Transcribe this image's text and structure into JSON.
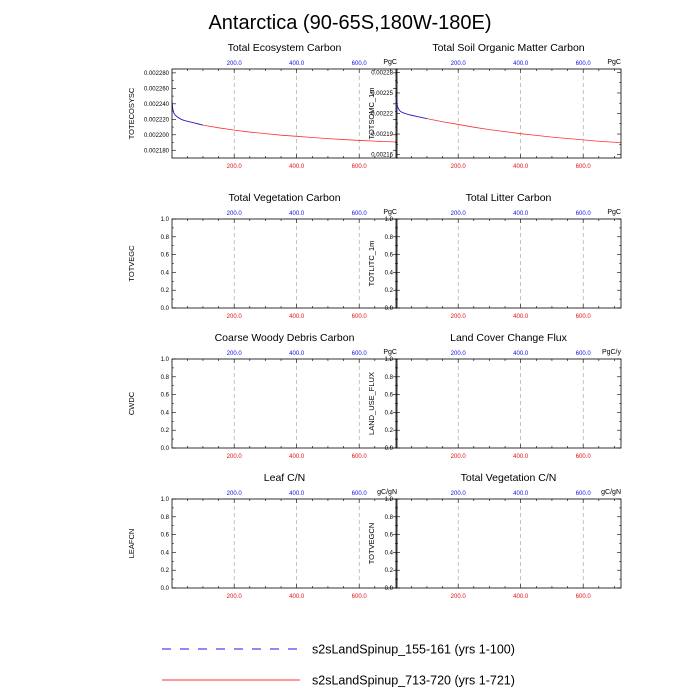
{
  "figure": {
    "title": "Antarctica (90-65S,180W-180E)"
  },
  "colors": {
    "series_a": "#1a1ae6",
    "series_b": "#ff3030",
    "top_ticks": "#1010e0",
    "bottom_ticks": "#e01010",
    "grid": "#999999"
  },
  "legend": {
    "items": [
      {
        "label": "s2sLandSpinup_155-161 (yrs 1-100)",
        "style": "dashed",
        "color": "#1a1ae6"
      },
      {
        "label": "s2sLandSpinup_713-720 (yrs 1-721)",
        "style": "solid",
        "color": "#ff3030"
      }
    ]
  },
  "chart_data": [
    {
      "type": "line",
      "title": "Total Ecosystem Carbon",
      "ylabel": "TOTECOSYSC",
      "units": "PgC",
      "xlim": [
        1,
        721
      ],
      "ylim": [
        0.00217,
        0.002285
      ],
      "yticks": [
        0.00218,
        0.0022,
        0.00222,
        0.00224,
        0.00226,
        0.00228
      ],
      "ytick_labels": [
        "0.002180",
        "0.002200",
        "0.002220",
        "0.002240",
        "0.002260",
        "0.002280"
      ],
      "xticks_bottom": [
        "200.0",
        "400.0",
        "600.0"
      ],
      "xticks_top": [
        "200.0",
        "400.0",
        "600.0"
      ],
      "xtick_values": [
        200,
        400,
        600
      ],
      "series": [
        {
          "x": [
            1,
            3,
            6,
            10,
            15,
            22,
            30,
            40,
            55,
            70,
            85,
            100
          ],
          "y": [
            0.002243,
            0.002234,
            0.002229,
            0.002226,
            0.002224,
            0.002222,
            0.00222,
            0.0022185,
            0.002217,
            0.0022155,
            0.002214,
            0.0022125
          ]
        },
        {
          "x": [
            1,
            3,
            6,
            10,
            15,
            22,
            30,
            40,
            55,
            70,
            85,
            100,
            150,
            200,
            250,
            300,
            350,
            400,
            450,
            500,
            550,
            600,
            650,
            700,
            721
          ],
          "y": [
            0.002244,
            0.002235,
            0.002229,
            0.002226,
            0.002224,
            0.002222,
            0.00222,
            0.0022185,
            0.002217,
            0.0022155,
            0.002214,
            0.0022125,
            0.002209,
            0.002206,
            0.0022035,
            0.0022015,
            0.0021995,
            0.002198,
            0.0021965,
            0.002195,
            0.0021938,
            0.0021927,
            0.0021918,
            0.002191,
            0.0021907
          ]
        }
      ]
    },
    {
      "type": "line",
      "title": "Total Soil Organic Matter Carbon",
      "ylabel": "TOTSOMC_1m",
      "units": "PgC",
      "xlim": [
        1,
        721
      ],
      "ylim": [
        0.002155,
        0.002285
      ],
      "yticks": [
        0.00216,
        0.00219,
        0.00222,
        0.00225,
        0.00228
      ],
      "ytick_labels": [
        "0.00216",
        "0.00219",
        "0.00222",
        "0.00225",
        "0.00228"
      ],
      "xticks_bottom": [
        "200.0",
        "400.0",
        "600.0"
      ],
      "xticks_top": [
        "200.0",
        "400.0",
        "600.0"
      ],
      "xtick_values": [
        200,
        400,
        600
      ],
      "series": [
        {
          "x": [
            1,
            3,
            6,
            10,
            15,
            22,
            30,
            40,
            55,
            70,
            85,
            100
          ],
          "y": [
            0.002252,
            0.002237,
            0.00223,
            0.002226,
            0.002223,
            0.0022215,
            0.00222,
            0.0022185,
            0.002217,
            0.0022155,
            0.002214,
            0.0022125
          ]
        },
        {
          "x": [
            1,
            3,
            6,
            10,
            15,
            22,
            30,
            40,
            55,
            70,
            85,
            100,
            150,
            200,
            250,
            300,
            350,
            400,
            450,
            500,
            550,
            600,
            650,
            700,
            721
          ],
          "y": [
            0.002252,
            0.002238,
            0.00223,
            0.002226,
            0.002223,
            0.0022215,
            0.00222,
            0.0022185,
            0.002217,
            0.0022155,
            0.002214,
            0.0022125,
            0.002208,
            0.002204,
            0.0022,
            0.0021965,
            0.0021935,
            0.0021905,
            0.002188,
            0.0021855,
            0.0021835,
            0.0021815,
            0.0021795,
            0.002178,
            0.0021774
          ]
        }
      ]
    },
    {
      "type": "line",
      "title": "Total Vegetation Carbon",
      "ylabel": "TOTVEGC",
      "units": "PgC",
      "xlim": [
        1,
        721
      ],
      "ylim": [
        0,
        1
      ],
      "yticks": [
        0,
        0.2,
        0.4,
        0.6,
        0.8,
        1
      ],
      "ytick_labels": [
        "0.0",
        "0.2",
        "0.4",
        "0.6",
        "0.8",
        "1.0"
      ],
      "xticks_bottom": [
        "200.0",
        "400.0",
        "600.0"
      ],
      "xticks_top": [
        "200.0",
        "400.0",
        "600.0"
      ],
      "xtick_values": [
        200,
        400,
        600
      ],
      "series": []
    },
    {
      "type": "line",
      "title": "Total Litter Carbon",
      "ylabel": "TOTLITC_1m",
      "units": "PgC",
      "xlim": [
        1,
        721
      ],
      "ylim": [
        0,
        1
      ],
      "yticks": [
        0,
        0.2,
        0.4,
        0.6,
        0.8,
        1
      ],
      "ytick_labels": [
        "0.0",
        "0.2",
        "0.4",
        "0.6",
        "0.8",
        "1.0"
      ],
      "xticks_bottom": [
        "200.0",
        "400.0",
        "600.0"
      ],
      "xticks_top": [
        "200.0",
        "400.0",
        "600.0"
      ],
      "xtick_values": [
        200,
        400,
        600
      ],
      "series": []
    },
    {
      "type": "line",
      "title": "Coarse Woody Debris Carbon",
      "ylabel": "CWDC",
      "units": "PgC",
      "xlim": [
        1,
        721
      ],
      "ylim": [
        0,
        1
      ],
      "yticks": [
        0,
        0.2,
        0.4,
        0.6,
        0.8,
        1
      ],
      "ytick_labels": [
        "0.0",
        "0.2",
        "0.4",
        "0.6",
        "0.8",
        "1.0"
      ],
      "xticks_bottom": [
        "200.0",
        "400.0",
        "600.0"
      ],
      "xticks_top": [
        "200.0",
        "400.0",
        "600.0"
      ],
      "xtick_values": [
        200,
        400,
        600
      ],
      "series": []
    },
    {
      "type": "line",
      "title": "Land Cover Change Flux",
      "ylabel": "LAND_USE_FLUX",
      "units": "PgC/y",
      "xlim": [
        1,
        721
      ],
      "ylim": [
        0,
        1
      ],
      "yticks": [
        0,
        0.2,
        0.4,
        0.6,
        0.8,
        1
      ],
      "ytick_labels": [
        "0.0",
        "0.2",
        "0.4",
        "0.6",
        "0.8",
        "1.0"
      ],
      "xticks_bottom": [
        "200.0",
        "400.0",
        "600.0"
      ],
      "xticks_top": [
        "200.0",
        "400.0",
        "600.0"
      ],
      "xtick_values": [
        200,
        400,
        600
      ],
      "series": []
    },
    {
      "type": "line",
      "title": "Leaf C/N",
      "ylabel": "LEAFCN",
      "units": "gC/gN",
      "xlim": [
        1,
        721
      ],
      "ylim": [
        0,
        1
      ],
      "yticks": [
        0,
        0.2,
        0.4,
        0.6,
        0.8,
        1
      ],
      "ytick_labels": [
        "0.0",
        "0.2",
        "0.4",
        "0.6",
        "0.8",
        "1.0"
      ],
      "xticks_bottom": [
        "200.0",
        "400.0",
        "600.0"
      ],
      "xticks_top": [
        "200.0",
        "400.0",
        "600.0"
      ],
      "xtick_values": [
        200,
        400,
        600
      ],
      "series": []
    },
    {
      "type": "line",
      "title": "Total Vegetation C/N",
      "ylabel": "TOTVEGCN",
      "units": "gC/gN",
      "xlim": [
        1,
        721
      ],
      "ylim": [
        0,
        1
      ],
      "yticks": [
        0,
        0.2,
        0.4,
        0.6,
        0.8,
        1
      ],
      "ytick_labels": [
        "0.0",
        "0.2",
        "0.4",
        "0.6",
        "0.8",
        "1.0"
      ],
      "xticks_bottom": [
        "200.0",
        "400.0",
        "600.0"
      ],
      "xticks_top": [
        "200.0",
        "400.0",
        "600.0"
      ],
      "xtick_values": [
        200,
        400,
        600
      ],
      "series": []
    }
  ]
}
